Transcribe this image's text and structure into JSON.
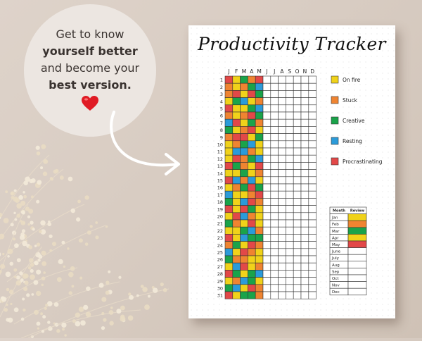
{
  "promo": {
    "line1": "Get to know",
    "line2": "yourself better",
    "line3": "and become your",
    "line4": "best version."
  },
  "sheet": {
    "title": "Productivity Tracker",
    "months": [
      "J",
      "F",
      "M",
      "A",
      "M",
      "J",
      "J",
      "A",
      "S",
      "O",
      "N",
      "D"
    ],
    "days": [
      "1",
      "2",
      "3",
      "4",
      "5",
      "6",
      "7",
      "8",
      "9",
      "10",
      "11",
      "12",
      "13",
      "14",
      "15",
      "16",
      "17",
      "18",
      "19",
      "20",
      "21",
      "22",
      "23",
      "24",
      "25",
      "26",
      "27",
      "28",
      "29",
      "30",
      "31"
    ],
    "grid_colors": [
      "#f0d21a",
      "#ef8431",
      "#1aa34a",
      "#2b9bd9",
      "#e24848"
    ],
    "grid_rows": [
      "40214",
      "10123",
      "14042",
      "02301",
      "40023",
      "10142",
      "34021",
      "20140",
      "14402",
      "01230",
      "03310",
      "04123",
      "42104",
      "00201",
      "43130",
      "01242",
      "30014",
      "20341",
      "40420",
      "04310",
      "21040",
      "00231",
      "40322",
      "12041",
      "30410",
      "21100",
      "03401",
      "42023",
      "01320",
      "23041",
      "40221"
    ],
    "legend": [
      {
        "label": "On fire",
        "color": "#f0d21a"
      },
      {
        "label": "Stuck",
        "color": "#ef8431"
      },
      {
        "label": "Creative",
        "color": "#1aa34a"
      },
      {
        "label": "Resting",
        "color": "#2b9bd9"
      },
      {
        "label": "Procrastinating",
        "color": "#e24848"
      }
    ],
    "review": {
      "header_month": "Month",
      "header_review": "Review",
      "rows": [
        {
          "month": "Jan",
          "color": "#f0d21a"
        },
        {
          "month": "Feb",
          "color": "#ef8431"
        },
        {
          "month": "Mar",
          "color": "#1aa34a"
        },
        {
          "month": "Apr",
          "color": "#f0d21a"
        },
        {
          "month": "May",
          "color": "#e24848"
        },
        {
          "month": "June",
          "color": ""
        },
        {
          "month": "July",
          "color": ""
        },
        {
          "month": "Aug",
          "color": ""
        },
        {
          "month": "Sep",
          "color": ""
        },
        {
          "month": "Oct",
          "color": ""
        },
        {
          "month": "Nov",
          "color": ""
        },
        {
          "month": "Dec",
          "color": ""
        }
      ]
    }
  }
}
